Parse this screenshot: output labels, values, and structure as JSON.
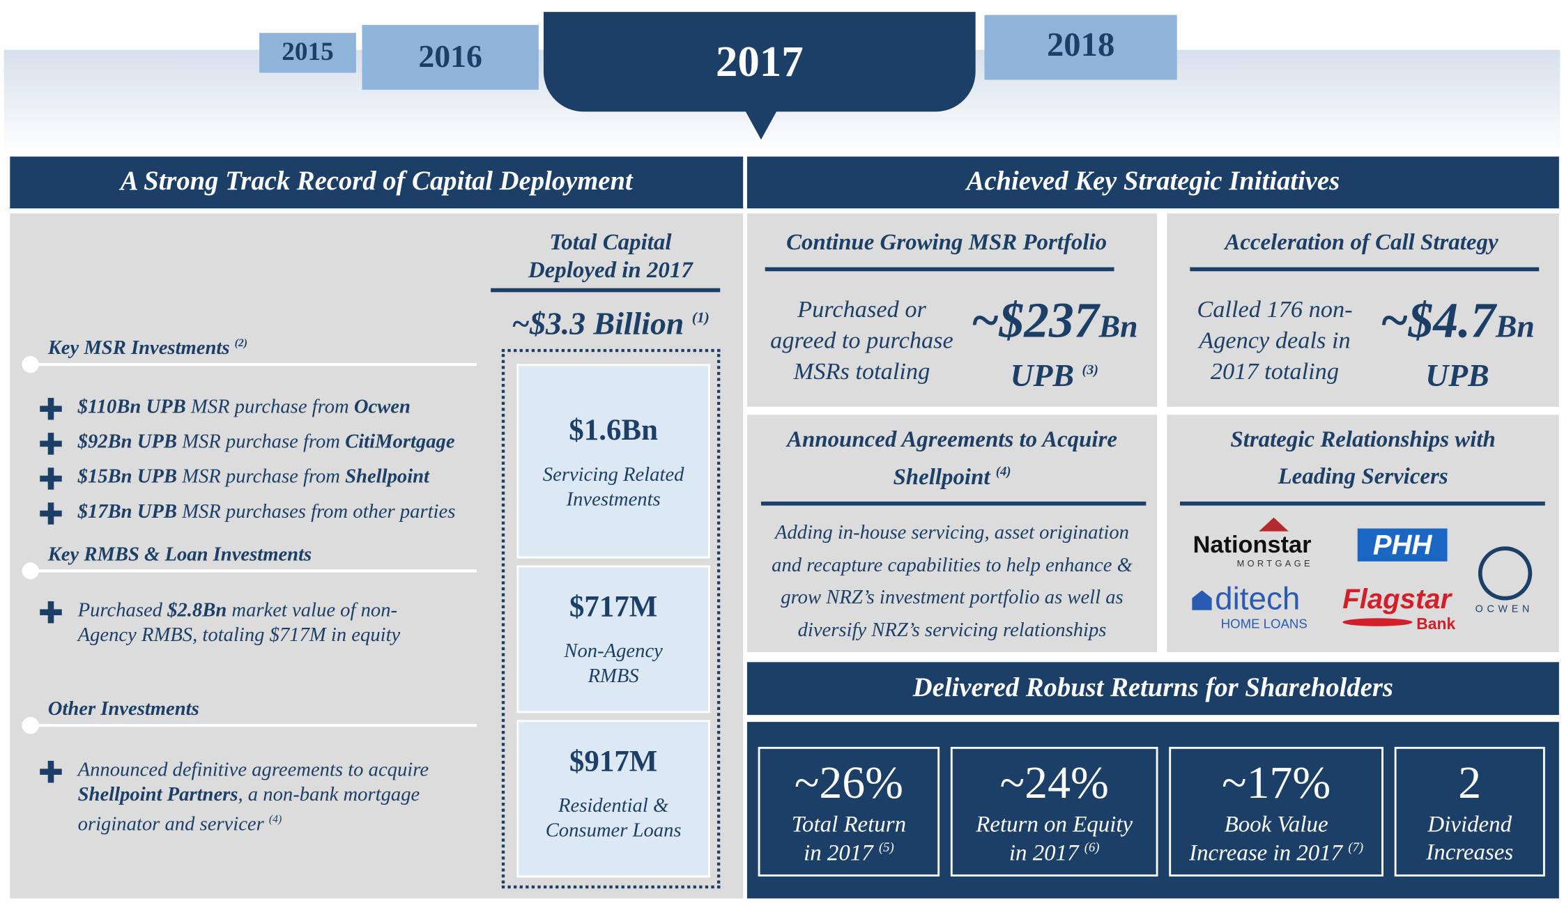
{
  "timeline": {
    "years": [
      "2015",
      "2016",
      "2017",
      "2018"
    ]
  },
  "left": {
    "title": "A Strong Track Record of Capital Deployment",
    "sections": [
      {
        "heading": "Key MSR Investments",
        "note": "(2)",
        "items": [
          {
            "parts": [
              {
                "text": "$110Bn UPB",
                "bold": true
              },
              {
                "text": " MSR purchase from "
              },
              {
                "text": "Ocwen",
                "bold": true
              }
            ]
          },
          {
            "parts": [
              {
                "text": "$92Bn UPB",
                "bold": true
              },
              {
                "text": " MSR purchase from "
              },
              {
                "text": "CitiMortgage",
                "bold": true
              }
            ]
          },
          {
            "parts": [
              {
                "text": "$15Bn UPB",
                "bold": true
              },
              {
                "text": " MSR purchase from "
              },
              {
                "text": "Shellpoint",
                "bold": true
              }
            ]
          },
          {
            "parts": [
              {
                "text": "$17Bn UPB",
                "bold": true
              },
              {
                "text": " MSR purchases from other parties"
              }
            ]
          }
        ]
      },
      {
        "heading": "Key RMBS & Loan Investments",
        "items": [
          {
            "parts": [
              {
                "text": "Purchased "
              },
              {
                "text": "$2.8Bn",
                "bold": true
              },
              {
                "text": " market value of non-Agency RMBS, totaling $717M in equity"
              }
            ]
          }
        ]
      },
      {
        "heading": "Other Investments",
        "items": [
          {
            "parts": [
              {
                "text": "Announced definitive agreements to acquire "
              },
              {
                "text": "Shellpoint Partners",
                "bold": true
              },
              {
                "text": ", a non-bank mortgage originator and servicer "
              },
              {
                "text": "(4)",
                "sup": true
              }
            ]
          }
        ]
      }
    ],
    "total": {
      "heading_lines": [
        "Total Capital",
        "Deployed in 2017"
      ],
      "amount": "~$3.3 Billion",
      "note": "(1)",
      "boxes": [
        {
          "value": "$1.6Bn",
          "label_lines": [
            "Servicing Related",
            "Investments"
          ]
        },
        {
          "value": "$717M",
          "label_lines": [
            "Non-Agency",
            "RMBS"
          ]
        },
        {
          "value": "$917M",
          "label_lines": [
            "Residential &",
            "Consumer Loans"
          ]
        }
      ]
    }
  },
  "right": {
    "title": "Achieved Key Strategic Initiatives",
    "msr": {
      "heading": "Continue Growing MSR Portfolio",
      "text_lines": [
        "Purchased or",
        "agreed to purchase",
        "MSRs totaling"
      ],
      "value": "~$237",
      "unit": "Bn",
      "sub": "UPB",
      "note": "(3)"
    },
    "call": {
      "heading": "Acceleration of Call Strategy",
      "text_lines": [
        "Called 176 non-",
        "Agency deals in",
        "2017 totaling"
      ],
      "value": "~$4.7",
      "unit": "Bn",
      "sub": "UPB"
    },
    "shellpoint": {
      "heading_lines": [
        "Announced Agreements to Acquire",
        "Shellpoint"
      ],
      "note": "(4)",
      "text_lines": [
        "Adding in-house servicing, asset origination",
        "and recapture capabilities to help enhance &",
        "grow NRZ’s investment portfolio as well as",
        "diversify NRZ’s servicing relationships"
      ]
    },
    "relationships": {
      "heading_lines": [
        "Strategic Relationships with",
        "Leading Servicers"
      ],
      "logos": {
        "nationstar": "Nationstar",
        "nationstar_sub": "MORTGAGE",
        "phh": "PHH",
        "ditech": "ditech",
        "ditech_sub": "HOME LOANS",
        "flagstar": "Flagstar",
        "flagstar_sub": "Bank",
        "ocwen": "OCWEN"
      }
    },
    "returns": {
      "title": "Delivered Robust Returns for Shareholders",
      "stats": [
        {
          "value": "~26%",
          "lines": [
            "Total Return",
            "in 2017"
          ],
          "note": "(5)"
        },
        {
          "value": "~24%",
          "lines": [
            "Return on Equity",
            "in 2017"
          ],
          "note": "(6)"
        },
        {
          "value": "~17%",
          "lines": [
            "Book Value",
            "Increase in 2017"
          ],
          "note": "(7)"
        },
        {
          "value": "2",
          "lines": [
            "Dividend",
            "Increases"
          ]
        }
      ]
    }
  }
}
